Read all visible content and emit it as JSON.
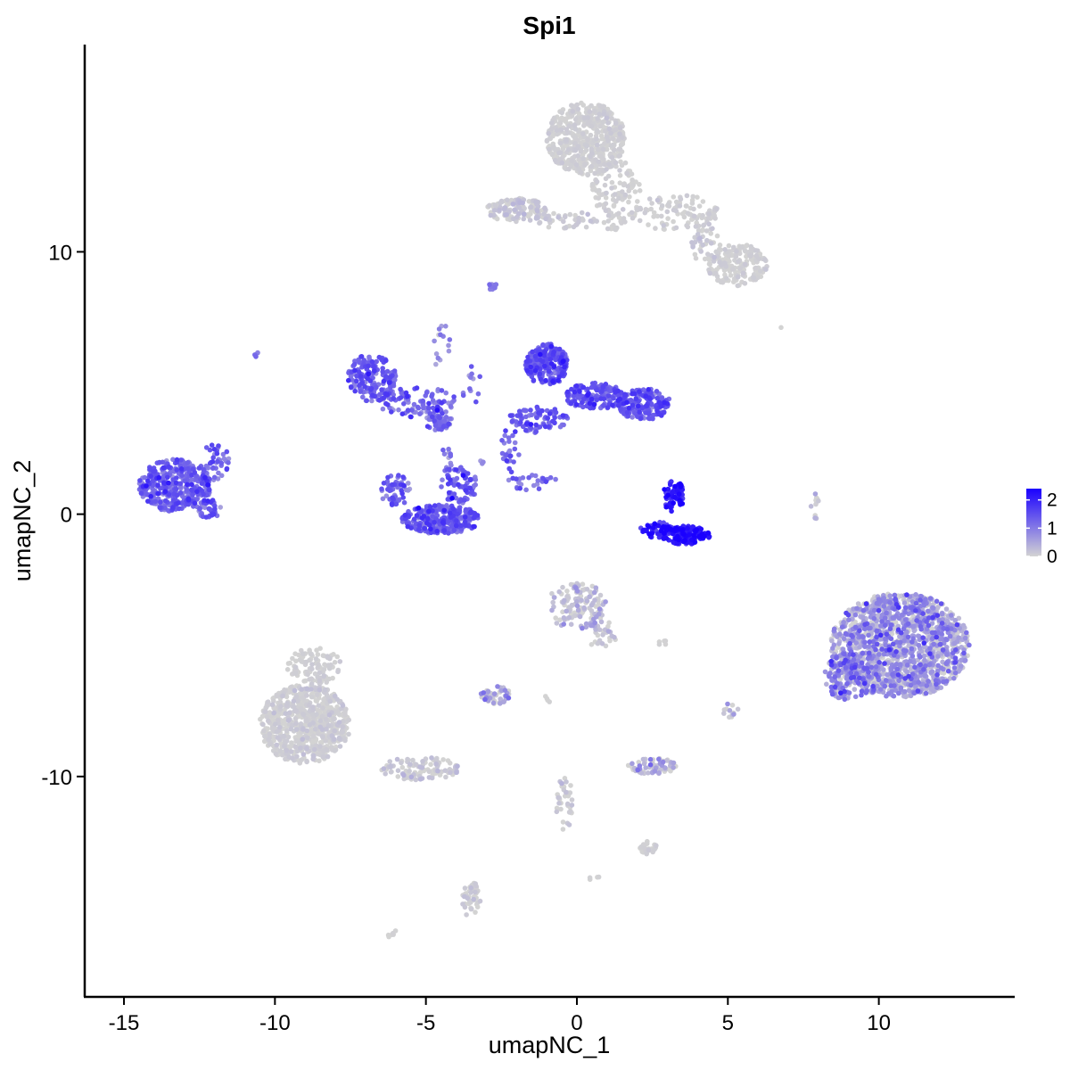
{
  "chart_data": {
    "type": "scatter",
    "title": "Spi1",
    "xlabel": "umapNC_1",
    "ylabel": "umapNC_2",
    "xlim": [
      -16.3,
      14.5
    ],
    "ylim": [
      -18.4,
      17.9
    ],
    "x_ticks": [
      -15,
      -10,
      -5,
      0,
      5,
      10
    ],
    "x_tick_labels": [
      "-15",
      "-10",
      "-5",
      "0",
      "5",
      "10"
    ],
    "y_ticks": [
      -10,
      0,
      10
    ],
    "y_tick_labels": [
      "-10",
      "0",
      "10"
    ],
    "grid": false,
    "color_scale": {
      "low_color": "#D3D3D3",
      "high_color": "#1A00FF",
      "min": 0,
      "max": 2.4,
      "ticks": [
        0,
        1,
        2
      ],
      "tick_labels": [
        "0",
        "1",
        "2"
      ],
      "legend_position": "right"
    },
    "clusters": [
      {
        "cx": 0.3,
        "cy": 14.3,
        "rx": 1.3,
        "ry": 1.4,
        "n": 520,
        "expr_mean": 0.02,
        "expr_sd": 0.05
      },
      {
        "cx": 1.3,
        "cy": 12.3,
        "rx": 0.8,
        "ry": 1.6,
        "n": 120,
        "expr_mean": 0.02,
        "expr_sd": 0.05
      },
      {
        "cx": -2.0,
        "cy": 11.6,
        "rx": 1.0,
        "ry": 0.45,
        "n": 140,
        "expr_mean": 0.05,
        "expr_sd": 0.15
      },
      {
        "cx": -0.3,
        "cy": 11.2,
        "rx": 1.0,
        "ry": 0.35,
        "n": 40,
        "expr_mean": 0.05,
        "expr_sd": 0.1
      },
      {
        "cx": 3.2,
        "cy": 11.5,
        "rx": 1.5,
        "ry": 0.7,
        "n": 110,
        "expr_mean": 0.02,
        "expr_sd": 0.05
      },
      {
        "cx": 5.3,
        "cy": 9.5,
        "rx": 1.0,
        "ry": 0.8,
        "n": 180,
        "expr_mean": 0.02,
        "expr_sd": 0.05
      },
      {
        "cx": 4.3,
        "cy": 10.3,
        "rx": 0.5,
        "ry": 0.8,
        "n": 40,
        "expr_mean": 0.05,
        "expr_sd": 0.1
      },
      {
        "cx": -2.8,
        "cy": 8.7,
        "rx": 0.15,
        "ry": 0.15,
        "n": 8,
        "expr_mean": 1.0,
        "expr_sd": 0.2
      },
      {
        "cx": -6.8,
        "cy": 5.2,
        "rx": 0.8,
        "ry": 0.9,
        "n": 170,
        "expr_mean": 1.35,
        "expr_sd": 0.3
      },
      {
        "cx": -5.3,
        "cy": 4.3,
        "rx": 1.3,
        "ry": 0.6,
        "n": 90,
        "expr_mean": 1.2,
        "expr_sd": 0.3
      },
      {
        "cx": -4.6,
        "cy": 3.6,
        "rx": 0.45,
        "ry": 0.4,
        "n": 60,
        "expr_mean": 1.1,
        "expr_sd": 0.3
      },
      {
        "cx": -4.5,
        "cy": 6.5,
        "rx": 0.3,
        "ry": 1.0,
        "n": 14,
        "expr_mean": 0.8,
        "expr_sd": 0.3
      },
      {
        "cx": -4.3,
        "cy": 2.0,
        "rx": 0.2,
        "ry": 0.6,
        "n": 15,
        "expr_mean": 1.0,
        "expr_sd": 0.3
      },
      {
        "cx": -4.5,
        "cy": -0.2,
        "rx": 1.3,
        "ry": 0.55,
        "n": 300,
        "expr_mean": 1.3,
        "expr_sd": 0.3
      },
      {
        "cx": -6.0,
        "cy": 0.9,
        "rx": 0.5,
        "ry": 0.6,
        "n": 60,
        "expr_mean": 1.3,
        "expr_sd": 0.3
      },
      {
        "cx": -3.9,
        "cy": 1.1,
        "rx": 0.6,
        "ry": 0.7,
        "n": 70,
        "expr_mean": 1.3,
        "expr_sd": 0.3
      },
      {
        "cx": -13.3,
        "cy": 1.1,
        "rx": 1.2,
        "ry": 1.0,
        "n": 380,
        "expr_mean": 1.3,
        "expr_sd": 0.3
      },
      {
        "cx": -12.2,
        "cy": 0.2,
        "rx": 0.4,
        "ry": 0.4,
        "n": 40,
        "expr_mean": 1.2,
        "expr_sd": 0.3
      },
      {
        "cx": -12.0,
        "cy": 2.0,
        "rx": 0.5,
        "ry": 0.7,
        "n": 40,
        "expr_mean": 1.2,
        "expr_sd": 0.3
      },
      {
        "cx": -10.6,
        "cy": 6.1,
        "rx": 0.1,
        "ry": 0.1,
        "n": 4,
        "expr_mean": 1.2,
        "expr_sd": 0.2
      },
      {
        "cx": -3.5,
        "cy": 5.0,
        "rx": 0.3,
        "ry": 1.0,
        "n": 12,
        "expr_mean": 1.2,
        "expr_sd": 0.3
      },
      {
        "cx": -1.0,
        "cy": 5.7,
        "rx": 0.7,
        "ry": 0.8,
        "n": 220,
        "expr_mean": 1.35,
        "expr_sd": 0.3
      },
      {
        "cx": 0.6,
        "cy": 4.5,
        "rx": 1.0,
        "ry": 0.5,
        "n": 160,
        "expr_mean": 1.3,
        "expr_sd": 0.3
      },
      {
        "cx": 2.2,
        "cy": 4.2,
        "rx": 0.9,
        "ry": 0.6,
        "n": 170,
        "expr_mean": 1.35,
        "expr_sd": 0.3
      },
      {
        "cx": -1.3,
        "cy": 3.6,
        "rx": 1.0,
        "ry": 0.5,
        "n": 90,
        "expr_mean": 1.3,
        "expr_sd": 0.3
      },
      {
        "cx": -2.2,
        "cy": 2.5,
        "rx": 0.3,
        "ry": 0.9,
        "n": 25,
        "expr_mean": 1.2,
        "expr_sd": 0.3
      },
      {
        "cx": -1.5,
        "cy": 1.2,
        "rx": 0.9,
        "ry": 0.3,
        "n": 25,
        "expr_mean": 1.1,
        "expr_sd": 0.3
      },
      {
        "cx": -3.1,
        "cy": 2.0,
        "rx": 0.1,
        "ry": 0.2,
        "n": 3,
        "expr_mean": 0.8,
        "expr_sd": 0.2
      },
      {
        "cx": 3.6,
        "cy": -0.8,
        "rx": 0.8,
        "ry": 0.35,
        "n": 140,
        "expr_mean": 2.1,
        "expr_sd": 0.3
      },
      {
        "cx": 2.7,
        "cy": -0.6,
        "rx": 0.6,
        "ry": 0.3,
        "n": 50,
        "expr_mean": 2.0,
        "expr_sd": 0.3
      },
      {
        "cx": 3.2,
        "cy": 0.7,
        "rx": 0.35,
        "ry": 0.6,
        "n": 70,
        "expr_mean": 2.0,
        "expr_sd": 0.3
      },
      {
        "cx": 7.9,
        "cy": 0.2,
        "rx": 0.15,
        "ry": 0.6,
        "n": 12,
        "expr_mean": 0.1,
        "expr_sd": 0.2
      },
      {
        "cx": 0.0,
        "cy": -3.5,
        "rx": 1.0,
        "ry": 0.9,
        "n": 130,
        "expr_mean": 0.15,
        "expr_sd": 0.3
      },
      {
        "cx": 0.8,
        "cy": -4.6,
        "rx": 0.5,
        "ry": 0.6,
        "n": 30,
        "expr_mean": 0.15,
        "expr_sd": 0.3
      },
      {
        "cx": 10.7,
        "cy": -5.0,
        "rx": 2.3,
        "ry": 2.0,
        "n": 1400,
        "expr_mean": 0.45,
        "expr_sd": 0.5
      },
      {
        "cx": 9.0,
        "cy": -6.2,
        "rx": 0.8,
        "ry": 0.9,
        "n": 150,
        "expr_mean": 0.8,
        "expr_sd": 0.4
      },
      {
        "cx": -2.7,
        "cy": -6.9,
        "rx": 0.5,
        "ry": 0.35,
        "n": 45,
        "expr_mean": 0.2,
        "expr_sd": 0.4
      },
      {
        "cx": 5.1,
        "cy": -7.5,
        "rx": 0.25,
        "ry": 0.3,
        "n": 12,
        "expr_mean": 0.3,
        "expr_sd": 0.4
      },
      {
        "cx": 2.5,
        "cy": -9.6,
        "rx": 0.8,
        "ry": 0.3,
        "n": 70,
        "expr_mean": 0.25,
        "expr_sd": 0.4
      },
      {
        "cx": -9.0,
        "cy": -8.0,
        "rx": 1.5,
        "ry": 1.5,
        "n": 700,
        "expr_mean": 0.02,
        "expr_sd": 0.08
      },
      {
        "cx": -8.7,
        "cy": -5.8,
        "rx": 0.9,
        "ry": 0.7,
        "n": 100,
        "expr_mean": 0.02,
        "expr_sd": 0.05
      },
      {
        "cx": -5.2,
        "cy": -9.7,
        "rx": 1.3,
        "ry": 0.45,
        "n": 110,
        "expr_mean": 0.05,
        "expr_sd": 0.15
      },
      {
        "cx": -0.4,
        "cy": -11.0,
        "rx": 0.3,
        "ry": 1.1,
        "n": 35,
        "expr_mean": 0.05,
        "expr_sd": 0.1
      },
      {
        "cx": 2.3,
        "cy": -12.7,
        "rx": 0.35,
        "ry": 0.25,
        "n": 30,
        "expr_mean": 0.02,
        "expr_sd": 0.05
      },
      {
        "cx": -3.5,
        "cy": -14.7,
        "rx": 0.3,
        "ry": 0.7,
        "n": 45,
        "expr_mean": 0.05,
        "expr_sd": 0.1
      },
      {
        "cx": -6.1,
        "cy": -16.0,
        "rx": 0.2,
        "ry": 0.15,
        "n": 6,
        "expr_mean": 0.0,
        "expr_sd": 0.02
      },
      {
        "cx": 0.6,
        "cy": -13.9,
        "rx": 0.2,
        "ry": 0.1,
        "n": 4,
        "expr_mean": 0.0,
        "expr_sd": 0.02
      },
      {
        "cx": 2.8,
        "cy": -4.9,
        "rx": 0.2,
        "ry": 0.1,
        "n": 5,
        "expr_mean": 0.0,
        "expr_sd": 0.02
      },
      {
        "cx": 6.8,
        "cy": 7.1,
        "rx": 0.05,
        "ry": 0.05,
        "n": 1,
        "expr_mean": 0.0,
        "expr_sd": 0.02
      },
      {
        "cx": -1.0,
        "cy": -7.1,
        "rx": 0.1,
        "ry": 0.3,
        "n": 4,
        "expr_mean": 0.0,
        "expr_sd": 0.02
      }
    ]
  }
}
